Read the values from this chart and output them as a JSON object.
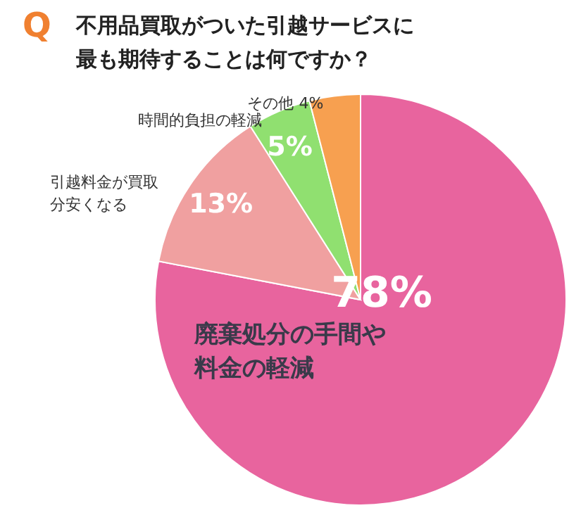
{
  "chart_data": {
    "type": "pie",
    "title": "Q 不用品買取がついた引越サービスに最も期待することは何ですか？",
    "categories": [
      "廃棄処分の手間や料金の軽減",
      "引越料金が買取分安くなる",
      "時間的負担の軽減",
      "その他"
    ],
    "values": [
      78,
      13,
      5,
      4
    ],
    "colors": [
      "#e8649e",
      "#f0a0a0",
      "#90e070",
      "#f7a050"
    ],
    "value_labels": [
      "78%",
      "13%",
      "5%",
      "4%"
    ],
    "legend": false
  }
}
